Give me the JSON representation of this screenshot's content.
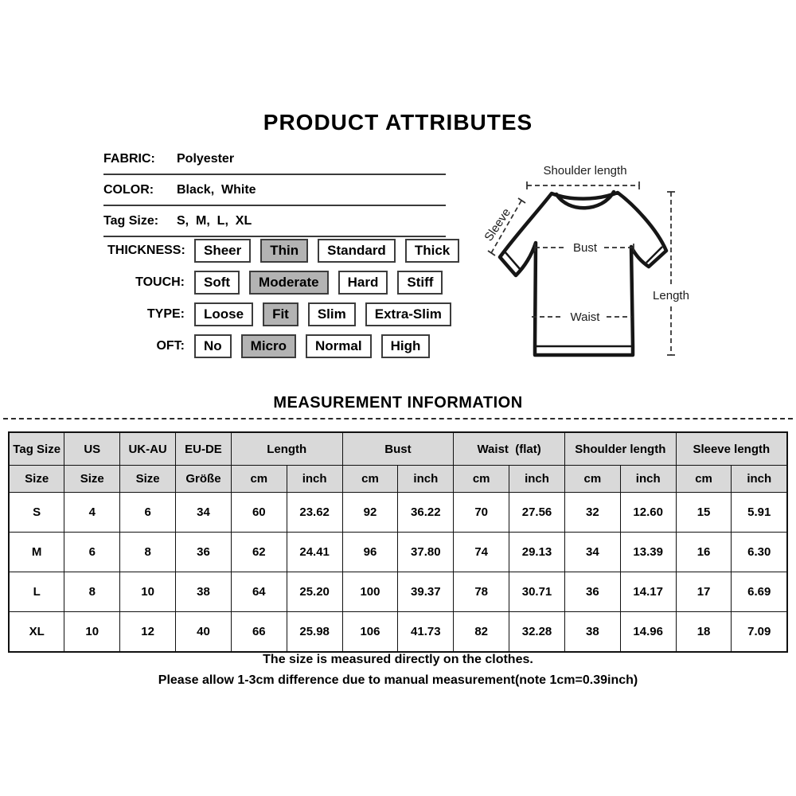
{
  "title": "PRODUCT ATTRIBUTES",
  "attributes": [
    {
      "label": "FABRIC:",
      "value": "Polyester"
    },
    {
      "label": "COLOR:",
      "value": "Black,  White"
    },
    {
      "label": "Tag Size:",
      "value": "S,  M,  L,  XL"
    }
  ],
  "options": [
    {
      "label": "THICKNESS:",
      "choices": [
        "Sheer",
        "Thin",
        "Standard",
        "Thick"
      ],
      "selected": "Thin"
    },
    {
      "label": "TOUCH:",
      "choices": [
        "Soft",
        "Moderate",
        "Hard",
        "Stiff"
      ],
      "selected": "Moderate"
    },
    {
      "label": "TYPE:",
      "choices": [
        "Loose",
        "Fit",
        "Slim",
        "Extra-Slim"
      ],
      "selected": "Fit"
    },
    {
      "label": "OFT:",
      "choices": [
        "No",
        "Micro",
        "Normal",
        "High"
      ],
      "selected": "Micro"
    }
  ],
  "diagram_labels": {
    "shoulder": "Shoulder length",
    "sleeve": "Sleeve",
    "bust": "Bust",
    "waist": "Waist",
    "length": "Length"
  },
  "measurement": {
    "heading": "MEASUREMENT INFORMATION",
    "table": {
      "group_headers": [
        {
          "label": "Tag Size",
          "span": 1
        },
        {
          "label": "US",
          "span": 1
        },
        {
          "label": "UK-AU",
          "span": 1
        },
        {
          "label": "EU-DE",
          "span": 1
        },
        {
          "label": "Length",
          "span": 2
        },
        {
          "label": "Bust",
          "span": 2
        },
        {
          "label": "Waist  (flat)",
          "span": 2
        },
        {
          "label": "Shoulder length",
          "span": 2
        },
        {
          "label": "Sleeve length",
          "span": 2
        }
      ],
      "sub_headers": [
        "Size",
        "Size",
        "Size",
        "Größe",
        "cm",
        "inch",
        "cm",
        "inch",
        "cm",
        "inch",
        "cm",
        "inch",
        "cm",
        "inch"
      ],
      "rows": [
        [
          "S",
          "4",
          "6",
          "34",
          "60",
          "23.62",
          "92",
          "36.22",
          "70",
          "27.56",
          "32",
          "12.60",
          "15",
          "5.91"
        ],
        [
          "M",
          "6",
          "8",
          "36",
          "62",
          "24.41",
          "96",
          "37.80",
          "74",
          "29.13",
          "34",
          "13.39",
          "16",
          "6.30"
        ],
        [
          "L",
          "8",
          "10",
          "38",
          "64",
          "25.20",
          "100",
          "39.37",
          "78",
          "30.71",
          "36",
          "14.17",
          "17",
          "6.69"
        ],
        [
          "XL",
          "10",
          "12",
          "40",
          "66",
          "25.98",
          "106",
          "41.73",
          "82",
          "32.28",
          "38",
          "14.96",
          "18",
          "7.09"
        ]
      ]
    }
  },
  "notes": [
    "The size is measured directly on the clothes.",
    "Please allow 1-3cm difference due to manual measurement(note 1cm=0.39inch)"
  ],
  "colors": {
    "selected_chip": "#b3b3b3",
    "table_header": "#d9d9d9",
    "border": "#111111"
  }
}
